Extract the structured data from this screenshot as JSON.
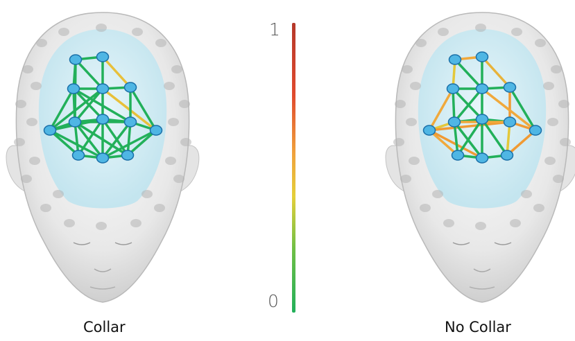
{
  "panels": [
    {
      "id": "collar",
      "label": "Collar",
      "edges": [
        {
          "a": 0,
          "b": 1,
          "color": "#22b05a"
        },
        {
          "a": 0,
          "b": 2,
          "color": "#22b05a"
        },
        {
          "a": 0,
          "b": 3,
          "color": "#22b05a"
        },
        {
          "a": 1,
          "b": 3,
          "color": "#22b05a"
        },
        {
          "a": 1,
          "b": 4,
          "color": "#e8c03a"
        },
        {
          "a": 2,
          "b": 3,
          "color": "#22b05a"
        },
        {
          "a": 3,
          "b": 4,
          "color": "#22b05a"
        },
        {
          "a": 2,
          "b": 6,
          "color": "#22b05a"
        },
        {
          "a": 2,
          "b": 5,
          "color": "#22b05a"
        },
        {
          "a": 3,
          "b": 6,
          "color": "#22b05a"
        },
        {
          "a": 3,
          "b": 7,
          "color": "#22b05a"
        },
        {
          "a": 3,
          "b": 9,
          "color": "#e8c03a"
        },
        {
          "a": 4,
          "b": 8,
          "color": "#22b05a"
        },
        {
          "a": 4,
          "b": 9,
          "color": "#22b05a"
        },
        {
          "a": 2,
          "b": 7,
          "color": "#22b05a"
        },
        {
          "a": 0,
          "b": 6,
          "color": "#22b05a"
        },
        {
          "a": 5,
          "b": 6,
          "color": "#22b05a"
        },
        {
          "a": 6,
          "b": 7,
          "color": "#22b05a"
        },
        {
          "a": 7,
          "b": 8,
          "color": "#22b05a"
        },
        {
          "a": 8,
          "b": 9,
          "color": "#22b05a"
        },
        {
          "a": 5,
          "b": 10,
          "color": "#22b05a"
        },
        {
          "a": 5,
          "b": 11,
          "color": "#22b05a"
        },
        {
          "a": 6,
          "b": 10,
          "color": "#22b05a"
        },
        {
          "a": 6,
          "b": 11,
          "color": "#22b05a"
        },
        {
          "a": 6,
          "b": 12,
          "color": "#22b05a"
        },
        {
          "a": 7,
          "b": 10,
          "color": "#22b05a"
        },
        {
          "a": 7,
          "b": 11,
          "color": "#22b05a"
        },
        {
          "a": 7,
          "b": 12,
          "color": "#22b05a"
        },
        {
          "a": 8,
          "b": 11,
          "color": "#22b05a"
        },
        {
          "a": 8,
          "b": 12,
          "color": "#22b05a"
        },
        {
          "a": 9,
          "b": 12,
          "color": "#22b05a"
        },
        {
          "a": 9,
          "b": 11,
          "color": "#22b05a"
        },
        {
          "a": 10,
          "b": 11,
          "color": "#22b05a"
        },
        {
          "a": 11,
          "b": 12,
          "color": "#22b05a"
        },
        {
          "a": 5,
          "b": 7,
          "color": "#22b05a"
        },
        {
          "a": 6,
          "b": 8,
          "color": "#22b05a"
        },
        {
          "a": 2,
          "b": 8,
          "color": "#22b05a"
        },
        {
          "a": 3,
          "b": 5,
          "color": "#22b05a"
        }
      ]
    },
    {
      "id": "no-collar",
      "label": "No Collar",
      "edges": [
        {
          "a": 0,
          "b": 1,
          "color": "#f0a93c"
        },
        {
          "a": 0,
          "b": 2,
          "color": "#e3c83a"
        },
        {
          "a": 0,
          "b": 3,
          "color": "#22b05a"
        },
        {
          "a": 1,
          "b": 3,
          "color": "#22b05a"
        },
        {
          "a": 1,
          "b": 4,
          "color": "#e8b33a"
        },
        {
          "a": 2,
          "b": 3,
          "color": "#22b05a"
        },
        {
          "a": 3,
          "b": 4,
          "color": "#22b05a"
        },
        {
          "a": 2,
          "b": 5,
          "color": "#f0a93c"
        },
        {
          "a": 2,
          "b": 6,
          "color": "#22b05a"
        },
        {
          "a": 2,
          "b": 7,
          "color": "#22b05a"
        },
        {
          "a": 3,
          "b": 6,
          "color": "#22b05a"
        },
        {
          "a": 3,
          "b": 7,
          "color": "#22b05a"
        },
        {
          "a": 4,
          "b": 8,
          "color": "#f09a33"
        },
        {
          "a": 4,
          "b": 9,
          "color": "#22b05a"
        },
        {
          "a": 5,
          "b": 6,
          "color": "#e3c83a"
        },
        {
          "a": 6,
          "b": 7,
          "color": "#22b05a"
        },
        {
          "a": 7,
          "b": 8,
          "color": "#22b05a"
        },
        {
          "a": 8,
          "b": 9,
          "color": "#f09a33"
        },
        {
          "a": 5,
          "b": 10,
          "color": "#f0a93c"
        },
        {
          "a": 5,
          "b": 11,
          "color": "#f09a33"
        },
        {
          "a": 5,
          "b": 8,
          "color": "#f09a33"
        },
        {
          "a": 6,
          "b": 10,
          "color": "#22b05a"
        },
        {
          "a": 6,
          "b": 11,
          "color": "#22b05a"
        },
        {
          "a": 7,
          "b": 10,
          "color": "#22b05a"
        },
        {
          "a": 7,
          "b": 11,
          "color": "#22b05a"
        },
        {
          "a": 7,
          "b": 12,
          "color": "#22b05a"
        },
        {
          "a": 8,
          "b": 12,
          "color": "#e3c83a"
        },
        {
          "a": 9,
          "b": 12,
          "color": "#f09a33"
        },
        {
          "a": 10,
          "b": 11,
          "color": "#22b05a"
        },
        {
          "a": 11,
          "b": 12,
          "color": "#22b05a"
        },
        {
          "a": 6,
          "b": 8,
          "color": "#f0a93c"
        },
        {
          "a": 3,
          "b": 9,
          "color": "#f0a93c"
        }
      ]
    }
  ],
  "scale": {
    "max_label": "1",
    "min_label": "0",
    "colors": [
      "#b5382a",
      "#e04a2e",
      "#f0a23c",
      "#e4cf3a",
      "#6fbf45",
      "#22b05a"
    ]
  },
  "colors": {
    "node_fill": "#4fb6e4",
    "node_stroke": "#1a6fa8"
  }
}
